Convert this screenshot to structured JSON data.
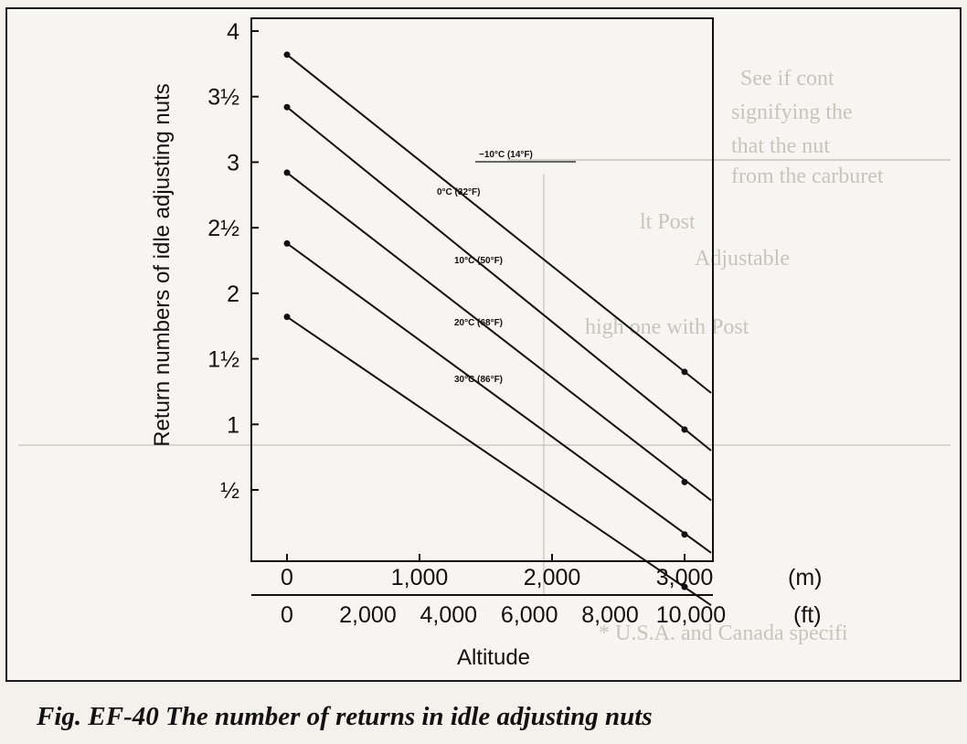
{
  "caption": "Fig. EF-40  The number of returns in idle adjusting nuts",
  "colors": {
    "line": "#111111",
    "paper": "#f6f5f1",
    "bleed_text": "#b9b4aa"
  },
  "chart_data": {
    "type": "line",
    "xlabel": "Altitude",
    "ylabel": "Return numbers of idle adjusting nuts",
    "x_unit_label": "(m)",
    "x2_unit_label": "(ft)",
    "xlim": [
      -250,
      3200
    ],
    "ylim": [
      0.1,
      4.1
    ],
    "x_ticks": [
      0,
      1000,
      2000,
      3000
    ],
    "x_tick_labels": [
      "0",
      "1,000",
      "2,000",
      "3,000"
    ],
    "x2_ticks": [
      0,
      610,
      1219,
      1829,
      2438,
      3048
    ],
    "x2_tick_labels": [
      "0",
      "2,000",
      "4,000",
      "6,000",
      "8,000",
      "10,000"
    ],
    "y_ticks": [
      0.5,
      1,
      1.5,
      2,
      2.5,
      3,
      3.5,
      4
    ],
    "y_tick_labels": [
      "½",
      "1",
      "1½",
      "2",
      "2½",
      "3",
      "3½",
      "4"
    ],
    "grid": false,
    "series": [
      {
        "name": "−10°C (14°F)",
        "x": [
          0,
          3000
        ],
        "y": [
          3.82,
          1.4
        ],
        "x_end": 3200,
        "y_end": 1.24
      },
      {
        "name": "0°C (32°F)",
        "x": [
          0,
          3000
        ],
        "y": [
          3.42,
          0.96
        ],
        "x_end": 3200,
        "y_end": 0.8
      },
      {
        "name": "10°C (50°F)",
        "x": [
          0,
          3000
        ],
        "y": [
          2.92,
          0.56
        ],
        "x_end": 3200,
        "y_end": 0.42
      },
      {
        "name": "20°C (68°F)",
        "x": [
          0,
          3000
        ],
        "y": [
          2.38,
          0.16
        ],
        "x_end": 3200,
        "y_end": 0.02
      },
      {
        "name": "30°C (86°F)",
        "x": [
          0,
          3000
        ],
        "y": [
          1.82,
          -0.24
        ],
        "x_end": 3200,
        "y_end": -0.38
      }
    ],
    "series_label_positions": [
      "along-line",
      "along-line",
      "along-line",
      "along-line",
      "along-line"
    ]
  },
  "bleed_through": {
    "lines": [
      "See if cont",
      "signifying the",
      "that the nut",
      "from the carburet",
      "lt Post",
      "Adjustable",
      "high one with Post",
      "* U.S.A. and Canada specifi"
    ]
  }
}
